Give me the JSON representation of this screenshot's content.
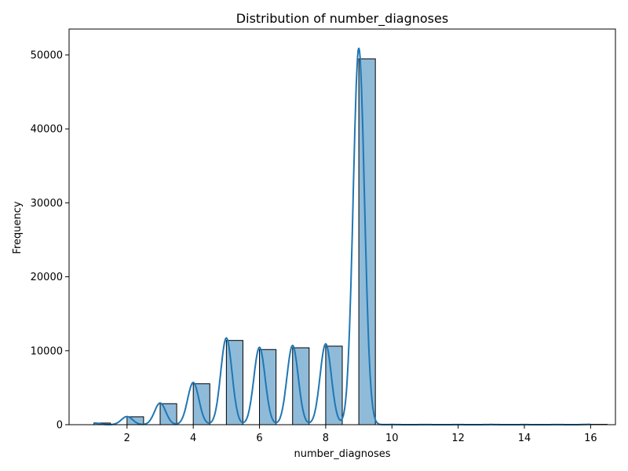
{
  "chart_data": {
    "type": "bar",
    "title": "Distribution of number_diagnoses",
    "xlabel": "number_diagnoses",
    "ylabel": "Frequency",
    "xlim": [
      0.25,
      16.75
    ],
    "ylim": [
      0,
      53500
    ],
    "xticks": [
      2,
      4,
      6,
      8,
      10,
      12,
      14,
      16
    ],
    "yticks": [
      0,
      10000,
      20000,
      30000,
      40000,
      50000
    ],
    "grid": false,
    "bar_color": "#1f77b4",
    "kde_color": "#1f77b4",
    "bins": [
      {
        "x": 1,
        "value": 220
      },
      {
        "x": 2,
        "value": 1070
      },
      {
        "x": 3,
        "value": 2840
      },
      {
        "x": 4,
        "value": 5540
      },
      {
        "x": 5,
        "value": 11390
      },
      {
        "x": 6,
        "value": 10160
      },
      {
        "x": 7,
        "value": 10400
      },
      {
        "x": 8,
        "value": 10620
      },
      {
        "x": 9,
        "value": 49470
      },
      {
        "x": 10,
        "value": 17
      },
      {
        "x": 11,
        "value": 11
      },
      {
        "x": 12,
        "value": 9
      },
      {
        "x": 13,
        "value": 16
      },
      {
        "x": 14,
        "value": 7
      },
      {
        "x": 15,
        "value": 10
      },
      {
        "x": 16,
        "value": 45
      }
    ]
  }
}
